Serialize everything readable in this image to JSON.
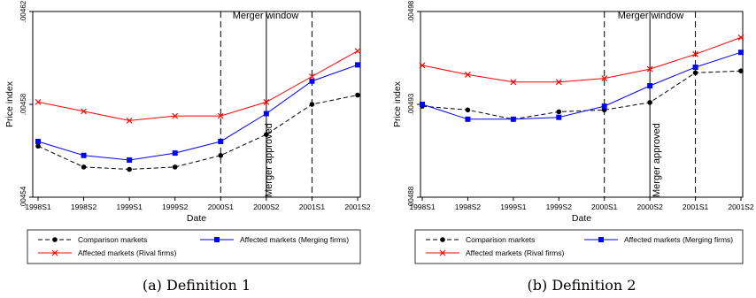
{
  "chart_data": [
    {
      "type": "line",
      "caption": "(a)  Definition 1",
      "xlabel": "Date",
      "ylabel": "Price index",
      "categories": [
        "1998S1",
        "1998S2",
        "1999S1",
        "1999S2",
        "2000S1",
        "2000S2",
        "2001S1",
        "2001S2"
      ],
      "yticks": [
        ".00454",
        ".00458",
        ".00462"
      ],
      "ylim": [
        0.00454,
        0.00462
      ],
      "series": [
        {
          "name": "Comparison markets",
          "color": "#000000",
          "dash": true,
          "marker": "circle",
          "values": [
            0.004562,
            0.004553,
            0.004552,
            0.004553,
            0.004558,
            0.004567,
            0.00458,
            0.004584
          ]
        },
        {
          "name": "Affected markets (Merging firms)",
          "color": "#0000ff",
          "dash": false,
          "marker": "square",
          "values": [
            0.004564,
            0.004558,
            0.004556,
            0.004559,
            0.004564,
            0.004576,
            0.00459,
            0.004597
          ]
        },
        {
          "name": "Affected markets (Rival firms)",
          "color": "#ff0000",
          "dash": false,
          "marker": "x",
          "values": [
            0.004581,
            0.004577,
            0.004573,
            0.004575,
            0.004575,
            0.004581,
            0.004592,
            0.004603
          ]
        }
      ],
      "annotations": {
        "window_label": "Merger window",
        "approved_label": "Merger approved",
        "window_lines_at": [
          "2000S1",
          "2001S1"
        ],
        "approved_at": "2000S2"
      }
    },
    {
      "type": "line",
      "caption": "(b)  Definition 2",
      "xlabel": "Date",
      "ylabel": "Price index",
      "categories": [
        "1998S1",
        "1998S2",
        "1999S1",
        "1999S2",
        "2000S1",
        "2000S2",
        "2001S1",
        "2001S2"
      ],
      "yticks": [
        ".00488",
        ".00493",
        ".00498"
      ],
      "ylim": [
        0.00488,
        0.00498
      ],
      "series": [
        {
          "name": "Comparison markets",
          "color": "#000000",
          "dash": true,
          "marker": "circle",
          "values": [
            0.004929,
            0.004927,
            0.004922,
            0.004926,
            0.004927,
            0.004931,
            0.004947,
            0.004948
          ]
        },
        {
          "name": "Affected markets (Merging firms)",
          "color": "#0000ff",
          "dash": false,
          "marker": "square",
          "values": [
            0.00493,
            0.004922,
            0.004922,
            0.004923,
            0.004929,
            0.00494,
            0.00495,
            0.004958
          ]
        },
        {
          "name": "Affected markets (Rival firms)",
          "color": "#ff0000",
          "dash": false,
          "marker": "x",
          "values": [
            0.004951,
            0.004946,
            0.004942,
            0.004942,
            0.004944,
            0.004949,
            0.004957,
            0.004966
          ]
        }
      ],
      "annotations": {
        "window_label": "Merger window",
        "approved_label": "Merger approved",
        "window_lines_at": [
          "2000S1",
          "2001S1"
        ],
        "approved_at": "2000S2"
      }
    }
  ]
}
